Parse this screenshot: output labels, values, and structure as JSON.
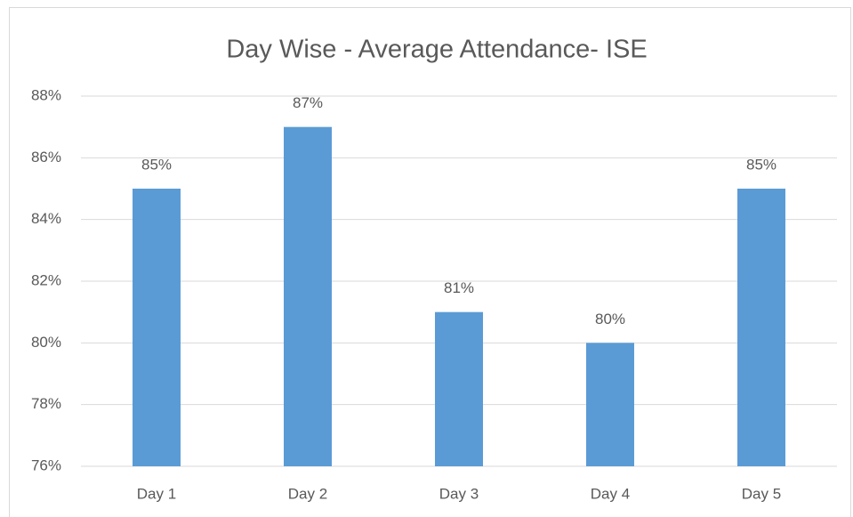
{
  "chart_data": {
    "type": "bar",
    "title": "Day Wise - Average Attendance- ISE",
    "categories": [
      "Day 1",
      "Day 2",
      "Day 3",
      "Day 4",
      "Day 5"
    ],
    "values": [
      85,
      87,
      81,
      80,
      85
    ],
    "value_labels": [
      "85%",
      "87%",
      "81%",
      "80%",
      "85%"
    ],
    "color": "#5b9bd5",
    "ylim": [
      76,
      88
    ],
    "yticks": [
      {
        "value": 76,
        "label": "76%"
      },
      {
        "value": 78,
        "label": "78%"
      },
      {
        "value": 80,
        "label": "80%"
      },
      {
        "value": 82,
        "label": "82%"
      },
      {
        "value": 84,
        "label": "84%"
      },
      {
        "value": 86,
        "label": "86%"
      },
      {
        "value": 88,
        "label": "88%"
      }
    ],
    "grid": true
  }
}
